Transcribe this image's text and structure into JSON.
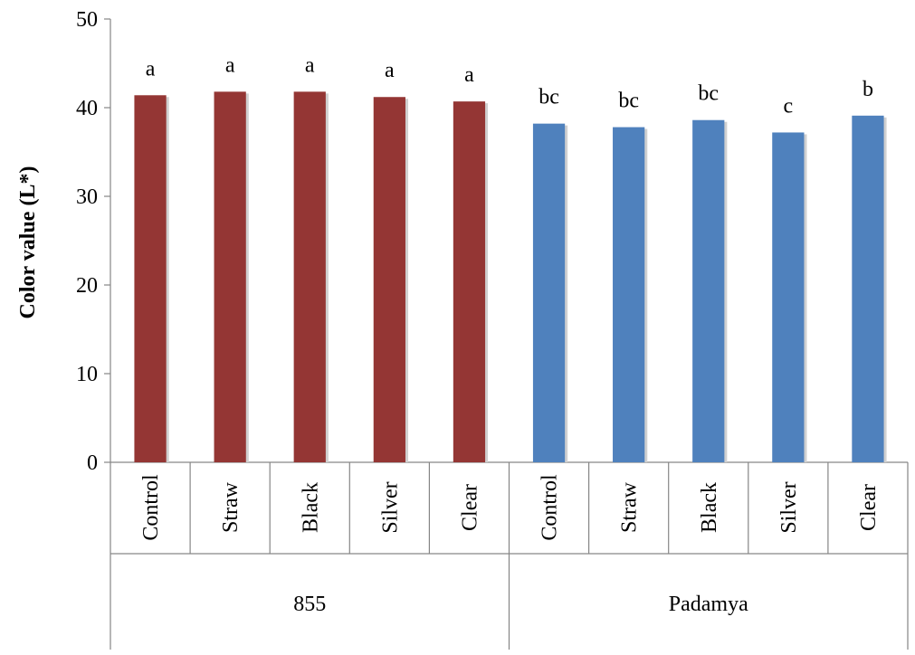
{
  "chart_data": {
    "type": "bar",
    "ylabel": "Color value (L*)",
    "ylim": [
      0,
      50
    ],
    "yticks": [
      0,
      10,
      20,
      30,
      40,
      50
    ],
    "grid": false,
    "legend": "none",
    "groups": [
      {
        "name": "855",
        "color": "#943634",
        "categories": [
          "Control",
          "Straw",
          "Black",
          "Silver",
          "Clear"
        ],
        "values": [
          41.4,
          41.8,
          41.8,
          41.2,
          40.7
        ],
        "letters": [
          "a",
          "a",
          "a",
          "a",
          "a"
        ]
      },
      {
        "name": "Padamya",
        "color": "#4F81BD",
        "categories": [
          "Control",
          "Straw",
          "Black",
          "Silver",
          "Clear"
        ],
        "values": [
          38.2,
          37.8,
          38.6,
          37.2,
          39.1
        ],
        "letters": [
          "bc",
          "bc",
          "bc",
          "c",
          "b"
        ]
      }
    ]
  }
}
